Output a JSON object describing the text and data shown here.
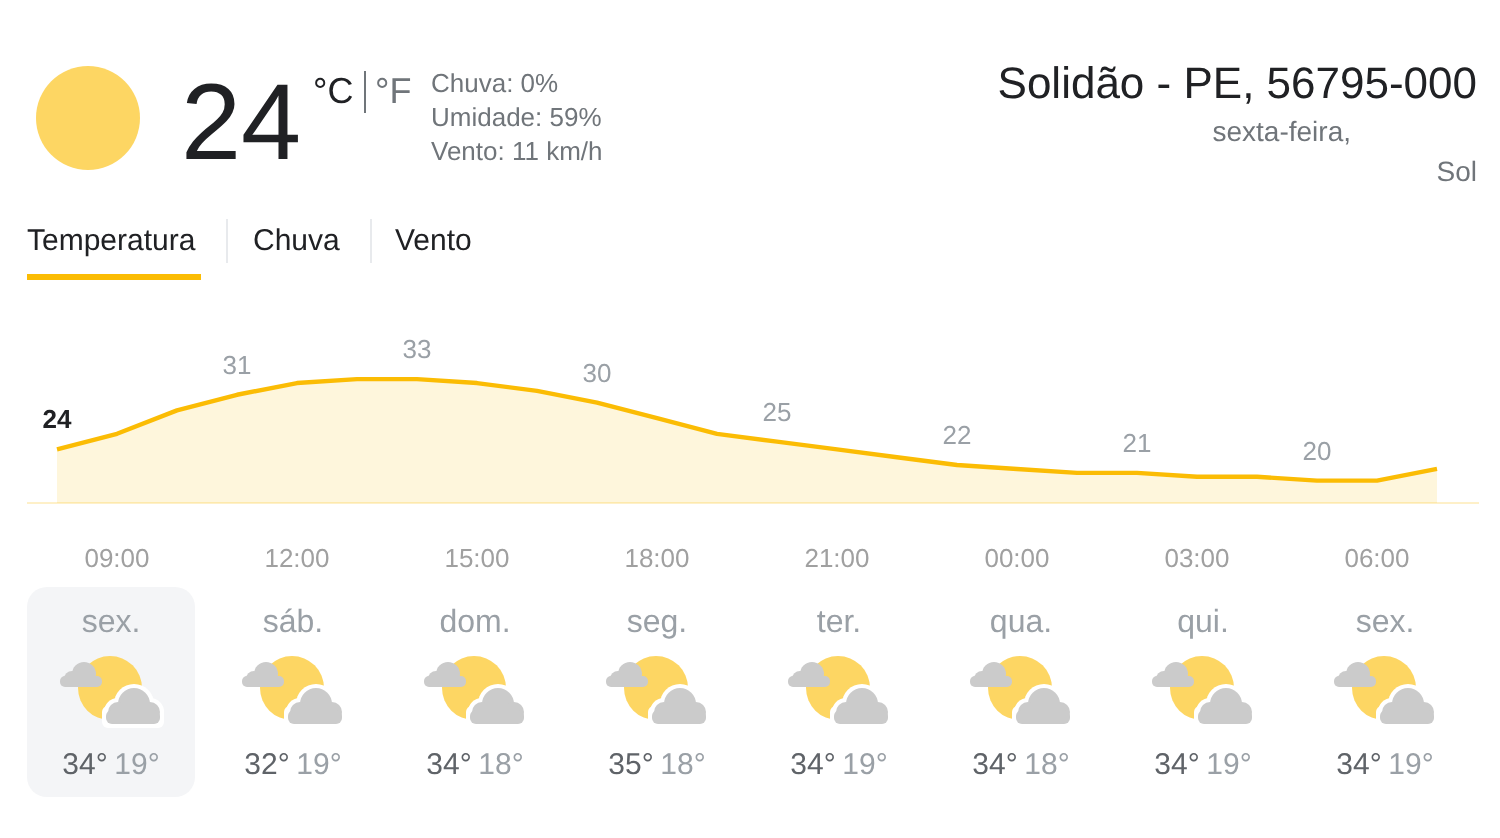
{
  "chart_data": [
    {
      "type": "other",
      "title": "Solidão - PE, 56795-000",
      "annotations": [
        "24",
        "°C",
        "°F",
        "Chuva: 0%",
        "Umidade: 59%",
        "Vento: 11 km/h",
        "sexta-feira,",
        "Sol",
        "Temperatura",
        "Chuva",
        "Vento"
      ]
    },
    {
      "type": "area",
      "categories": [
        null,
        "09:00",
        null,
        null,
        "12:00",
        null,
        null,
        "15:00",
        null,
        null,
        "18:00",
        null,
        null,
        "21:00",
        null,
        null,
        "00:00",
        null,
        null,
        "03:00",
        null,
        null,
        "06:00",
        null
      ],
      "values": [
        24,
        26,
        29,
        31,
        32.5,
        33,
        33,
        32.5,
        31.5,
        30,
        28,
        26,
        25,
        24,
        23,
        22,
        21.5,
        21,
        21,
        20.5,
        20.5,
        20,
        20,
        21.5
      ],
      "value_labels": [
        "24",
        null,
        null,
        "31",
        null,
        null,
        "33",
        null,
        null,
        "30",
        null,
        null,
        "25",
        null,
        null,
        "22",
        null,
        null,
        "21",
        null,
        null,
        "20",
        null,
        null
      ],
      "color": "#fbbc04",
      "tick_labels": "x"
    },
    {
      "type": "other",
      "categories": [
        "sex.",
        "sáb.",
        "dom.",
        "seg.",
        "ter.",
        "qua.",
        "qui.",
        "sex."
      ],
      "annotations": [
        "34°",
        "19°",
        "32°",
        "19°",
        "34°",
        "18°",
        "35°",
        "18°",
        "34°",
        "19°",
        "34°",
        "18°",
        "34°",
        "19°",
        "34°",
        "19°"
      ]
    }
  ]
}
